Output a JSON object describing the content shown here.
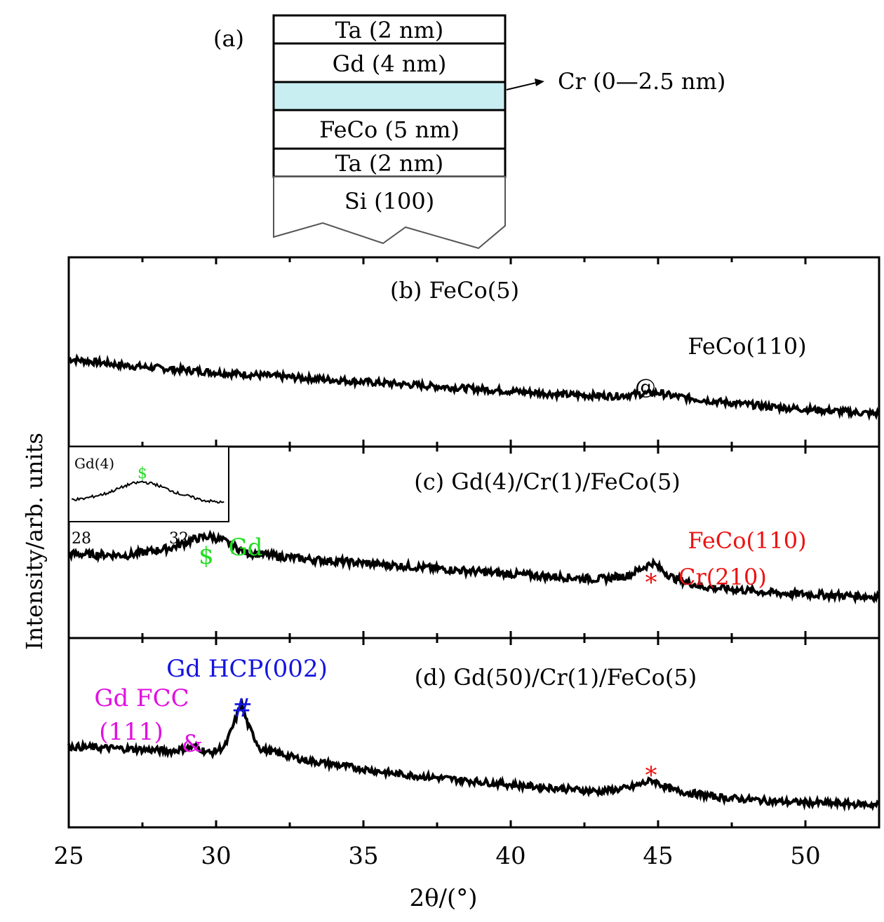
{
  "stack": {
    "label": "(a)",
    "layers": [
      "Ta (2 nm)",
      "Gd (4 nm)",
      "",
      "FeCo (5 nm)",
      "Ta (2 nm)",
      "Si (100)"
    ],
    "cr_callout": "Cr (0—2.5 nm)",
    "cr_color": "#c9eef2"
  },
  "axes": {
    "xlabel": "2θ/(°)",
    "ylabel": "Intensity/arb. units",
    "xlim": [
      25,
      52.5
    ],
    "xticks": [
      25,
      30,
      35,
      40,
      45,
      50
    ],
    "xticklabels": [
      "25",
      "30",
      "35",
      "40",
      "45",
      "50"
    ]
  },
  "colors": {
    "trace": "#000000",
    "gd_green": "#22dd22",
    "feco_red": "#ee1111",
    "hcp_blue": "#1414e0",
    "fcc_magenta": "#e010e0"
  },
  "chart_data": [
    {
      "type": "line",
      "title": "(b) FeCo(5)",
      "xlim": [
        25,
        52.5
      ],
      "series": [
        {
          "x": [
            25,
            27,
            30,
            33,
            36,
            39,
            42,
            43.5,
            44.5,
            45,
            45.5,
            47,
            49,
            52.5
          ],
          "y": [
            0.8,
            0.74,
            0.68,
            0.63,
            0.58,
            0.53,
            0.48,
            0.47,
            0.49,
            0.5,
            0.47,
            0.42,
            0.37,
            0.31
          ]
        }
      ],
      "annotations": [
        {
          "text": "FeCo(110)",
          "x": 45
        },
        {
          "text": "@",
          "x": 44.6
        }
      ]
    },
    {
      "type": "line",
      "title": "(c) Gd(4)/Cr(1)/FeCo(5)",
      "xlim": [
        25,
        52.5
      ],
      "series": [
        {
          "x": [
            25,
            27,
            28.5,
            29.3,
            29.8,
            30.3,
            31,
            33,
            36,
            40,
            43,
            44,
            44.8,
            45.5,
            46.5,
            49,
            52.5
          ],
          "y": [
            0.75,
            0.74,
            0.8,
            0.87,
            0.89,
            0.85,
            0.76,
            0.71,
            0.66,
            0.59,
            0.55,
            0.58,
            0.68,
            0.56,
            0.49,
            0.44,
            0.41
          ]
        }
      ],
      "annotations": [
        {
          "text": "$",
          "x": 29.6
        },
        {
          "text": "Gd",
          "x": 30.8
        },
        {
          "text": "FeCo(110)",
          "x": 45
        },
        {
          "text": "Cr(210)",
          "x": 45
        },
        {
          "text": "*",
          "x": 44.8
        }
      ],
      "inset": {
        "title": "Gd(4)",
        "marker": "$",
        "tick_labels": [
          "28",
          "32"
        ],
        "series": [
          {
            "x": [
              28,
              29,
              30,
              30.5,
              31,
              32,
              33,
              34
            ],
            "y": [
              0.35,
              0.45,
              0.62,
              0.66,
              0.62,
              0.45,
              0.33,
              0.28
            ]
          }
        ]
      }
    },
    {
      "type": "line",
      "title": "(d) Gd(50)/Cr(1)/FeCo(5)",
      "xlim": [
        25,
        52.5
      ],
      "series": [
        {
          "x": [
            25,
            27,
            28.5,
            29.3,
            29.8,
            30.3,
            30.6,
            30.85,
            31.1,
            31.5,
            33,
            36,
            40,
            43,
            44,
            44.8,
            45.5,
            47,
            49,
            52.5
          ],
          "y": [
            0.72,
            0.7,
            0.68,
            0.72,
            0.66,
            0.72,
            0.92,
            1.1,
            0.9,
            0.7,
            0.6,
            0.48,
            0.38,
            0.32,
            0.35,
            0.42,
            0.33,
            0.27,
            0.23,
            0.2
          ]
        }
      ],
      "annotations": [
        {
          "text": "Gd HCP(002)",
          "x": 30.9
        },
        {
          "text": "#",
          "x": 30.9
        },
        {
          "text": "Gd FCC",
          "x": 26.6
        },
        {
          "text": "(111)",
          "x": 26.6
        },
        {
          "text": "&",
          "x": 29.2
        },
        {
          "text": "*",
          "x": 44.8
        }
      ]
    }
  ]
}
